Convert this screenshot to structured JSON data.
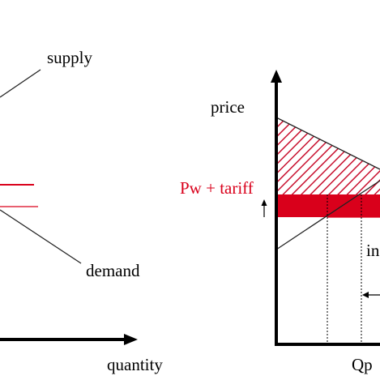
{
  "left_panel": {
    "supply_label": "supply",
    "demand_label": "demand",
    "x_axis_label": "quantity"
  },
  "right_panel": {
    "y_axis_label": "price",
    "price_label": "Pw + tariff",
    "partial_label_in": "in",
    "partial_label_qp": "Qp"
  },
  "colors": {
    "tariff_red": "#d9001b",
    "axis": "#000000",
    "hatch": "#c8102e"
  }
}
